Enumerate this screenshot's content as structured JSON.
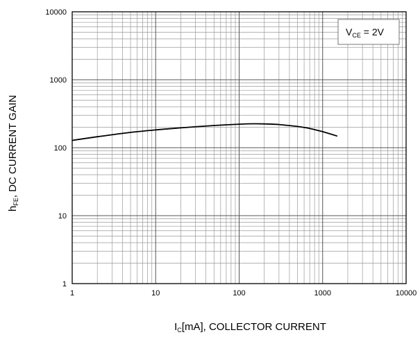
{
  "chart_data": {
    "type": "line",
    "x_scale": "log",
    "y_scale": "log",
    "xlim": [
      1,
      10000
    ],
    "ylim": [
      1,
      10000
    ],
    "x_ticks": [
      "1",
      "10",
      "100",
      "1000",
      "10000"
    ],
    "y_ticks": [
      "1",
      "10",
      "100",
      "1000",
      "10000"
    ],
    "grid": true,
    "xlabel": {
      "main": "I",
      "sub": "C",
      "rest": "[mA], COLLECTOR CURRENT"
    },
    "ylabel": {
      "main": "h",
      "sub": "FE",
      "rest": ", DC CURRENT GAIN"
    },
    "annotation": {
      "main": "V",
      "sub": "CE",
      "rest": " = 2V",
      "placement": "top-right"
    },
    "series": [
      {
        "x": [
          1,
          2,
          5,
          10,
          20,
          50,
          100,
          150,
          200,
          300,
          500,
          700,
          1000,
          1500
        ],
        "y": [
          128,
          145,
          168,
          183,
          196,
          212,
          222,
          225,
          224,
          219,
          205,
          192,
          172,
          148
        ]
      }
    ]
  }
}
